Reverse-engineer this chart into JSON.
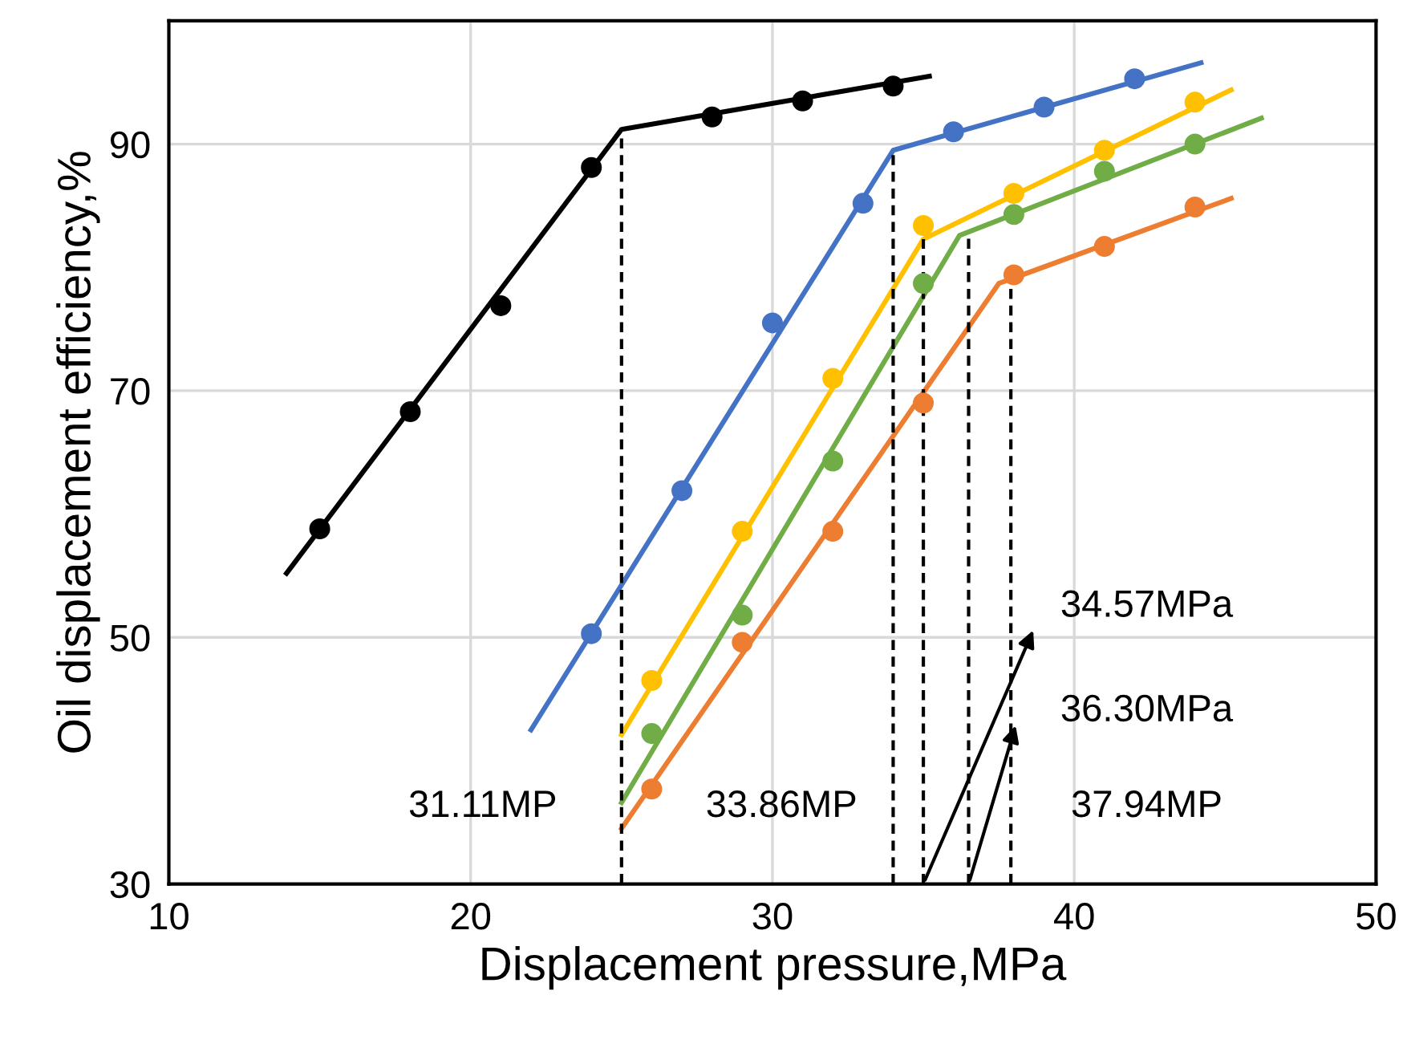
{
  "chart_data": {
    "type": "line",
    "xlabel": "Displacement pressure,MPa",
    "ylabel": "Oil displacement efficiency,%",
    "xlim": [
      10,
      50
    ],
    "ylim": [
      30,
      100
    ],
    "xticks": [
      10,
      20,
      30,
      40,
      50
    ],
    "yticks": [
      30,
      50,
      70,
      90
    ],
    "grid": true,
    "series": [
      {
        "color": "#000000",
        "x": [
          13.9,
          25.0,
          35.2
        ],
        "values": [
          55.2,
          91.2,
          95.5
        ],
        "line_style": "solid",
        "marker": "none"
      },
      {
        "type": "scatter",
        "color": "#000000",
        "x": [
          15,
          18,
          21,
          24,
          28,
          31,
          34
        ],
        "values": [
          58.8,
          68.3,
          76.9,
          88.1,
          92.2,
          93.5,
          94.7
        ],
        "marker": "circle"
      },
      {
        "color": "#4472c4",
        "x": [
          22.0,
          34.0,
          44.2
        ],
        "values": [
          42.5,
          89.5,
          96.6
        ],
        "line_style": "solid",
        "marker": "none"
      },
      {
        "type": "scatter",
        "color": "#4472c4",
        "x": [
          24,
          27,
          30,
          33,
          36,
          39,
          42
        ],
        "values": [
          50.3,
          61.9,
          75.5,
          85.2,
          91.0,
          93.0,
          95.3
        ],
        "marker": "circle"
      },
      {
        "color": "#ffc000",
        "x": [
          25.0,
          35.0,
          45.2
        ],
        "values": [
          42.1,
          82.3,
          94.4
        ],
        "line_style": "solid",
        "marker": "none"
      },
      {
        "type": "scatter",
        "color": "#ffc000",
        "x": [
          26,
          29,
          32,
          35,
          38,
          41,
          44
        ],
        "values": [
          46.5,
          58.6,
          71.0,
          83.4,
          86.0,
          89.5,
          93.4
        ],
        "marker": "circle"
      },
      {
        "color": "#70ad47",
        "x": [
          25.0,
          36.2,
          46.2
        ],
        "values": [
          36.6,
          82.6,
          92.1
        ],
        "line_style": "solid",
        "marker": "none"
      },
      {
        "type": "scatter",
        "color": "#70ad47",
        "x": [
          26,
          29,
          32,
          35,
          38,
          41,
          44
        ],
        "values": [
          42.2,
          51.8,
          64.3,
          78.7,
          84.3,
          87.8,
          90.0
        ],
        "marker": "circle"
      },
      {
        "color": "#ed7d31",
        "x": [
          25.0,
          37.5,
          45.2
        ],
        "values": [
          34.5,
          78.7,
          85.6
        ],
        "line_style": "solid",
        "marker": "none"
      },
      {
        "type": "scatter",
        "color": "#ed7d31",
        "x": [
          26,
          29,
          32,
          35,
          38,
          41,
          44
        ],
        "values": [
          37.7,
          49.6,
          58.6,
          69.0,
          79.4,
          81.7,
          84.9
        ],
        "marker": "circle"
      },
      {
        "color": "#000000",
        "x": [
          25.0,
          25.0
        ],
        "values": [
          30,
          91.2
        ],
        "line_style": "dashed",
        "marker": "none"
      },
      {
        "color": "#000000",
        "x": [
          34.0,
          34.0
        ],
        "values": [
          30,
          89.5
        ],
        "line_style": "dashed",
        "marker": "none"
      },
      {
        "color": "#000000",
        "x": [
          35.0,
          35.0
        ],
        "values": [
          30,
          82.3
        ],
        "line_style": "dashed",
        "marker": "none"
      },
      {
        "color": "#000000",
        "x": [
          36.5,
          36.5
        ],
        "values": [
          30,
          82.6
        ],
        "line_style": "dashed",
        "marker": "none"
      },
      {
        "color": "#000000",
        "x": [
          37.9,
          37.9
        ],
        "values": [
          30,
          79.0
        ],
        "line_style": "dashed",
        "marker": "none"
      }
    ],
    "annotations": [
      "34.57MPa",
      "36.30MPa",
      "31.11MP",
      "33.86MP",
      "37.94MP"
    ]
  }
}
